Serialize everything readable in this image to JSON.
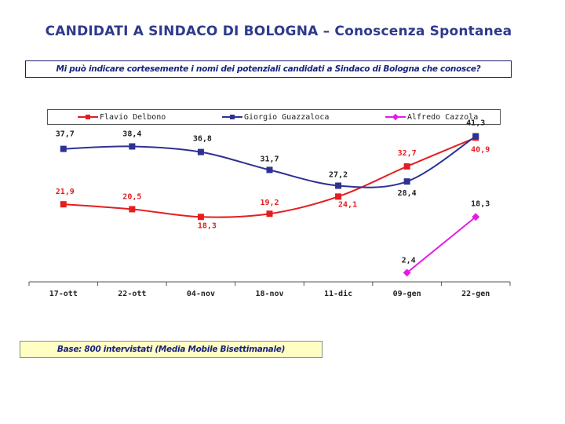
{
  "page": {
    "title": "CANDIDATI A SINDACO DI BOLOGNA – Conoscenza Spontanea",
    "question": "Mi può indicare cortesemente i nomi dei potenziali candidati a Sindaco di Bologna che conosce?",
    "base_note": "Base: 800 intervistati (Media Mobile Bisettimanale)"
  },
  "colors": {
    "title": "#2e3a8c",
    "delbono": "#e41e1e",
    "guazzaloca": "#2e3192",
    "cazzola": "#e619e6"
  },
  "chart_data": {
    "type": "line",
    "title": "CANDIDATI A SINDACO DI BOLOGNA – Conoscenza Spontanea",
    "categories": [
      "17-ott",
      "22-ott",
      "04-nov",
      "18-nov",
      "11-dic",
      "09-gen",
      "22-gen"
    ],
    "ylim": [
      0,
      45
    ],
    "grid": false,
    "legend_position": "top",
    "series": [
      {
        "name": "Flavio Delbono",
        "color": "#e41e1e",
        "marker": "square",
        "values": [
          21.9,
          20.5,
          18.3,
          19.2,
          24.1,
          32.7,
          40.9
        ],
        "labels": [
          "21,9",
          "20,5",
          "18,3",
          "19,2",
          "24,1",
          "32,7",
          "40,9"
        ]
      },
      {
        "name": "Giorgio Guazzaloca",
        "color": "#2e3192",
        "marker": "square",
        "values": [
          37.7,
          38.4,
          36.8,
          31.7,
          27.2,
          28.4,
          41.3
        ],
        "labels": [
          "37,7",
          "38,4",
          "36,8",
          "31,7",
          "27,2",
          "28,4",
          "41,3"
        ]
      },
      {
        "name": "Alfredo Cazzola",
        "color": "#e619e6",
        "marker": "diamond",
        "values": [
          null,
          null,
          null,
          null,
          null,
          2.4,
          18.3
        ],
        "labels": [
          null,
          null,
          null,
          null,
          null,
          "2,4",
          "18,3"
        ]
      }
    ]
  }
}
